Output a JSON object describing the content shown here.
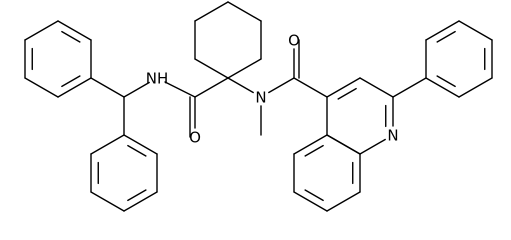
{
  "atoms": [
    "NH",
    "O",
    "N",
    "O",
    "N"
  ]
}
